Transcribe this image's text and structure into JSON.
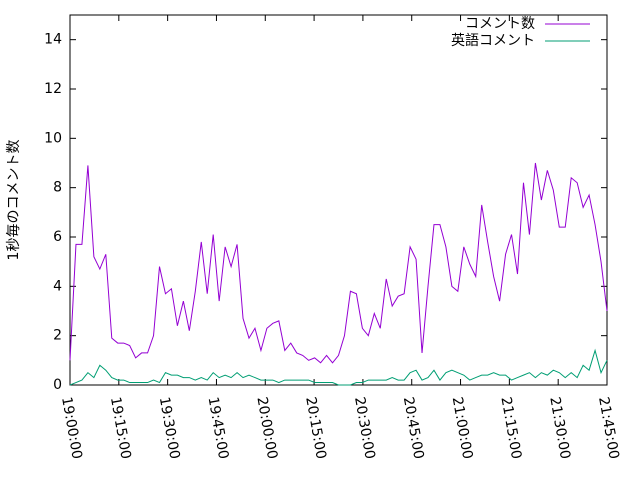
{
  "chart_data": {
    "type": "line",
    "ylabel": "1秒毎のコメント数",
    "x": [
      "19:00:00",
      "19:01:50",
      "19:03:40",
      "19:05:30",
      "19:07:20",
      "19:09:10",
      "19:11:00",
      "19:12:50",
      "19:14:40",
      "19:16:30",
      "19:18:20",
      "19:20:10",
      "19:22:00",
      "19:23:50",
      "19:25:40",
      "19:27:30",
      "19:29:20",
      "19:31:10",
      "19:33:00",
      "19:34:50",
      "19:36:40",
      "19:38:30",
      "19:40:20",
      "19:42:10",
      "19:44:00",
      "19:45:50",
      "19:47:40",
      "19:49:30",
      "19:51:20",
      "19:53:10",
      "19:55:00",
      "19:56:50",
      "19:58:40",
      "20:00:30",
      "20:02:20",
      "20:04:10",
      "20:06:00",
      "20:07:50",
      "20:09:40",
      "20:11:30",
      "20:13:20",
      "20:15:10",
      "20:17:00",
      "20:18:50",
      "20:20:40",
      "20:22:30",
      "20:24:20",
      "20:26:10",
      "20:28:00",
      "20:29:50",
      "20:31:40",
      "20:33:30",
      "20:35:20",
      "20:37:10",
      "20:39:00",
      "20:40:50",
      "20:42:40",
      "20:44:30",
      "20:46:20",
      "20:48:10",
      "20:50:00",
      "20:51:50",
      "20:53:40",
      "20:55:30",
      "20:57:20",
      "20:59:10",
      "21:01:00",
      "21:02:50",
      "21:04:40",
      "21:06:30",
      "21:08:20",
      "21:10:10",
      "21:12:00",
      "21:13:50",
      "21:15:40",
      "21:17:30",
      "21:19:20",
      "21:21:10",
      "21:23:00",
      "21:24:50",
      "21:26:40",
      "21:28:30",
      "21:30:20",
      "21:32:10",
      "21:34:00",
      "21:35:50",
      "21:37:40",
      "21:39:30",
      "21:41:20",
      "21:43:10",
      "21:45:00"
    ],
    "series": [
      {
        "name": "コメント数",
        "color": "#9400d3",
        "values": [
          1.0,
          5.7,
          5.7,
          8.9,
          5.2,
          4.7,
          5.3,
          1.9,
          1.7,
          1.7,
          1.6,
          1.1,
          1.3,
          1.3,
          2.0,
          4.8,
          3.7,
          3.9,
          2.4,
          3.4,
          2.2,
          3.8,
          5.8,
          3.7,
          6.1,
          3.4,
          5.6,
          4.8,
          5.7,
          2.7,
          1.9,
          2.3,
          1.4,
          2.3,
          2.5,
          2.6,
          1.4,
          1.7,
          1.3,
          1.2,
          1.0,
          1.1,
          0.9,
          1.2,
          0.9,
          1.2,
          2.0,
          3.8,
          3.7,
          2.3,
          2.0,
          2.9,
          2.3,
          4.3,
          3.2,
          3.6,
          3.7,
          5.6,
          5.1,
          1.3,
          4.0,
          6.5,
          6.5,
          5.6,
          4.0,
          3.8,
          5.6,
          4.9,
          4.4,
          7.3,
          5.8,
          4.4,
          3.4,
          5.3,
          6.1,
          4.5,
          8.2,
          6.1,
          9.0,
          7.5,
          8.7,
          7.9,
          6.4,
          6.4,
          8.4,
          8.2,
          7.2,
          7.7,
          6.5,
          5.0,
          3.0
        ]
      },
      {
        "name": "英語コメント",
        "color": "#009e73",
        "values": [
          0.0,
          0.1,
          0.2,
          0.5,
          0.3,
          0.8,
          0.6,
          0.3,
          0.2,
          0.2,
          0.1,
          0.1,
          0.1,
          0.1,
          0.2,
          0.1,
          0.5,
          0.4,
          0.4,
          0.3,
          0.3,
          0.2,
          0.3,
          0.2,
          0.5,
          0.3,
          0.4,
          0.3,
          0.5,
          0.3,
          0.4,
          0.3,
          0.2,
          0.2,
          0.2,
          0.1,
          0.2,
          0.2,
          0.2,
          0.2,
          0.2,
          0.1,
          0.1,
          0.1,
          0.1,
          0.0,
          0.0,
          0.0,
          0.1,
          0.1,
          0.2,
          0.2,
          0.2,
          0.2,
          0.3,
          0.2,
          0.2,
          0.5,
          0.6,
          0.2,
          0.3,
          0.6,
          0.2,
          0.5,
          0.6,
          0.5,
          0.4,
          0.2,
          0.3,
          0.4,
          0.4,
          0.5,
          0.4,
          0.4,
          0.2,
          0.3,
          0.4,
          0.5,
          0.3,
          0.5,
          0.4,
          0.6,
          0.5,
          0.3,
          0.5,
          0.3,
          0.8,
          0.6,
          1.4,
          0.5,
          1.0
        ]
      }
    ],
    "xlim": [
      "19:00:00",
      "21:45:00"
    ],
    "xticks": [
      "19:00:00",
      "19:15:00",
      "19:30:00",
      "19:45:00",
      "20:00:00",
      "20:15:00",
      "20:30:00",
      "20:45:00",
      "21:00:00",
      "21:15:00",
      "21:30:00",
      "21:45:00"
    ],
    "ylim": [
      0,
      15
    ],
    "yticks": [
      0,
      2,
      4,
      6,
      8,
      10,
      12,
      14
    ],
    "legend": "top-right",
    "grid": false
  }
}
